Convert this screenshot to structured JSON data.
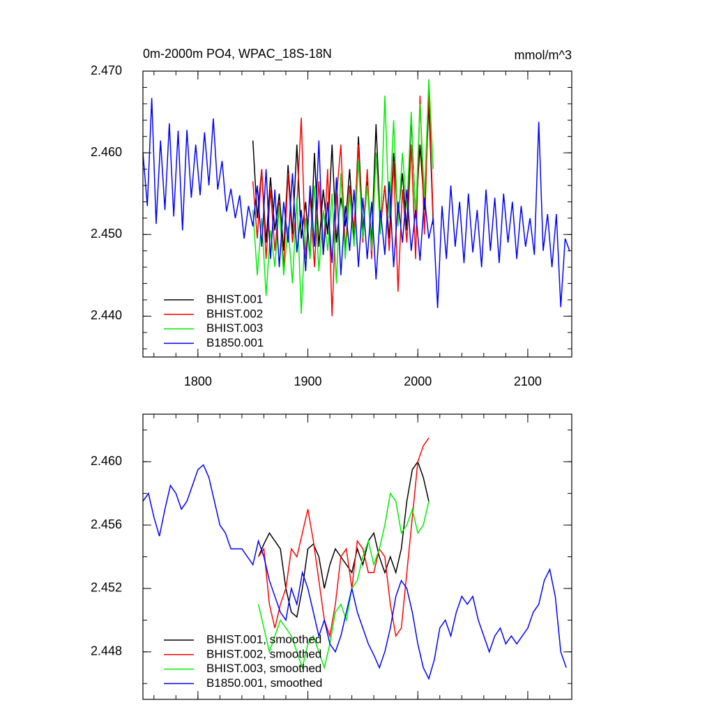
{
  "chart_data": [
    {
      "type": "line",
      "title": "0m-2000m PO4, WPAC_18S-18N",
      "subtitle": "mmol/m^3",
      "xlim": [
        1750,
        2140
      ],
      "ylim": [
        2.435,
        2.47
      ],
      "xticks": [
        1800,
        1900,
        2000,
        2100
      ],
      "yticks": [
        {
          "value": 2.44,
          "label": "2.440"
        },
        {
          "value": 2.45,
          "label": "2.450"
        },
        {
          "value": 2.46,
          "label": "2.460"
        },
        {
          "value": 2.47,
          "label": "2.470"
        }
      ],
      "legend": "lower left",
      "series": [
        {
          "name": "BHIST.001",
          "color": "#000000",
          "x": [
            1850,
            1854,
            1858,
            1862,
            1866,
            1870,
            1874,
            1878,
            1882,
            1886,
            1890,
            1894,
            1898,
            1902,
            1906,
            1910,
            1914,
            1918,
            1922,
            1926,
            1930,
            1934,
            1938,
            1942,
            1946,
            1950,
            1954,
            1958,
            1962,
            1966,
            1970,
            1974,
            1978,
            1982,
            1986,
            1990,
            1994,
            1998,
            2002,
            2006,
            2010,
            2014
          ],
          "values": [
            2.4615,
            2.452,
            2.458,
            2.449,
            2.457,
            2.4505,
            2.455,
            2.448,
            2.4585,
            2.45,
            2.461,
            2.4495,
            2.454,
            2.447,
            2.46,
            2.4485,
            2.4555,
            2.45,
            2.461,
            2.449,
            2.4545,
            2.451,
            2.458,
            2.4495,
            2.462,
            2.4505,
            2.4565,
            2.449,
            2.4635,
            2.451,
            2.456,
            2.4495,
            2.46,
            2.452,
            2.4575,
            2.4505,
            2.4645,
            2.452,
            2.461,
            2.453,
            2.466,
            2.4512
          ]
        },
        {
          "name": "BHIST.002",
          "color": "#ff0000",
          "x": [
            1850,
            1854,
            1858,
            1862,
            1866,
            1870,
            1874,
            1878,
            1882,
            1886,
            1890,
            1894,
            1898,
            1902,
            1906,
            1910,
            1914,
            1918,
            1922,
            1926,
            1930,
            1934,
            1938,
            1942,
            1946,
            1950,
            1954,
            1958,
            1962,
            1966,
            1970,
            1974,
            1978,
            1982,
            1986,
            1990,
            1994,
            1998,
            2002,
            2006,
            2010,
            2014
          ],
          "values": [
            2.4565,
            2.4495,
            2.458,
            2.447,
            2.4555,
            2.448,
            2.454,
            2.446,
            2.4575,
            2.449,
            2.4535,
            2.4643,
            2.447,
            2.455,
            2.446,
            2.4565,
            2.4475,
            2.458,
            2.44,
            2.4545,
            2.461,
            2.448,
            2.456,
            2.4505,
            2.461,
            2.449,
            2.458,
            2.447,
            2.46,
            2.451,
            2.456,
            2.448,
            2.459,
            2.443,
            2.4555,
            2.449,
            2.461,
            2.447,
            2.467,
            2.45,
            2.468,
            2.452
          ]
        },
        {
          "name": "BHIST.003",
          "color": "#00ee00",
          "x": [
            1850,
            1854,
            1858,
            1862,
            1866,
            1870,
            1874,
            1878,
            1882,
            1886,
            1890,
            1894,
            1898,
            1902,
            1906,
            1910,
            1914,
            1918,
            1922,
            1926,
            1930,
            1934,
            1938,
            1942,
            1946,
            1950,
            1954,
            1958,
            1962,
            1966,
            1970,
            1974,
            1978,
            1982,
            1986,
            1990,
            1994,
            1998,
            2002,
            2006,
            2010,
            2014
          ],
          "values": [
            2.453,
            2.445,
            2.452,
            2.4425,
            2.4505,
            2.446,
            2.4535,
            2.445,
            2.451,
            2.444,
            2.4545,
            2.4403,
            2.452,
            2.447,
            2.456,
            2.4455,
            2.453,
            2.448,
            2.455,
            2.444,
            2.4575,
            2.447,
            2.455,
            2.4485,
            2.459,
            2.4495,
            2.456,
            2.448,
            2.46,
            2.45,
            2.467,
            2.452,
            2.464,
            2.451,
            2.46,
            2.453,
            2.465,
            2.452,
            2.466,
            2.4545,
            2.469,
            2.458
          ]
        },
        {
          "name": "B1850.001",
          "color": "#0000ff",
          "x": [
            1750,
            1754,
            1758,
            1762,
            1766,
            1770,
            1774,
            1778,
            1782,
            1786,
            1790,
            1794,
            1798,
            1802,
            1806,
            1810,
            1814,
            1818,
            1822,
            1826,
            1830,
            1834,
            1838,
            1842,
            1846,
            1850,
            1854,
            1858,
            1862,
            1866,
            1870,
            1874,
            1878,
            1882,
            1886,
            1890,
            1894,
            1898,
            1902,
            1906,
            1910,
            1914,
            1918,
            1922,
            1926,
            1930,
            1934,
            1938,
            1942,
            1946,
            1950,
            1954,
            1958,
            1962,
            1966,
            1970,
            1974,
            1978,
            1982,
            1986,
            1990,
            1994,
            1998,
            2002,
            2006,
            2010,
            2014,
            2018,
            2022,
            2026,
            2030,
            2034,
            2038,
            2042,
            2046,
            2050,
            2054,
            2058,
            2062,
            2066,
            2070,
            2074,
            2078,
            2082,
            2086,
            2090,
            2094,
            2098,
            2102,
            2106,
            2110,
            2114,
            2118,
            2122,
            2126,
            2130,
            2134,
            2138
          ],
          "values": [
            2.46,
            2.4535,
            2.4667,
            2.4513,
            2.4615,
            2.453,
            2.4636,
            2.4522,
            2.4627,
            2.4505,
            2.4628,
            2.4545,
            2.461,
            2.4548,
            2.4625,
            2.456,
            2.4642,
            2.4555,
            2.459,
            2.4528,
            2.4556,
            2.452,
            2.4548,
            2.4495,
            2.4535,
            2.451,
            2.456,
            2.4485,
            2.458,
            2.447,
            2.4555,
            2.446,
            2.454,
            2.449,
            2.4575,
            2.4478,
            2.453,
            2.4455,
            2.456,
            2.4485,
            2.4615,
            2.4475,
            2.454,
            2.4465,
            2.457,
            2.445,
            2.4535,
            2.448,
            2.4555,
            2.446,
            2.4545,
            2.447,
            2.454,
            2.4445,
            2.453,
            2.4475,
            2.4565,
            2.446,
            2.454,
            2.449,
            2.4555,
            2.448,
            2.453,
            2.4468,
            2.4545,
            2.4495,
            2.452,
            2.441,
            2.4535,
            2.447,
            2.456,
            2.4485,
            2.454,
            2.4465,
            2.455,
            2.4478,
            2.453,
            2.446,
            2.4555,
            2.448,
            2.4545,
            2.4465,
            2.455,
            2.449,
            2.454,
            2.447,
            2.4535,
            2.4485,
            2.452,
            2.4475,
            2.4638,
            2.448,
            2.4525,
            2.446,
            2.4525,
            2.4411,
            2.4495,
            2.448
          ]
        }
      ]
    },
    {
      "type": "line",
      "xlim": [
        1750,
        2140
      ],
      "ylim": [
        2.445,
        2.463
      ],
      "xticks": [
        1800,
        1900,
        2000,
        2100
      ],
      "xticklabels": false,
      "yticks": [
        {
          "value": 2.448,
          "label": "2.448"
        },
        {
          "value": 2.452,
          "label": "2.452"
        },
        {
          "value": 2.456,
          "label": "2.456"
        },
        {
          "value": 2.46,
          "label": "2.460"
        }
      ],
      "legend": "lower left",
      "series": [
        {
          "name": "BHIST.001, smoothed",
          "color": "#000000",
          "x": [
            1855,
            1860,
            1865,
            1870,
            1875,
            1880,
            1885,
            1890,
            1895,
            1900,
            1905,
            1910,
            1915,
            1920,
            1925,
            1930,
            1935,
            1940,
            1945,
            1950,
            1955,
            1960,
            1965,
            1970,
            1975,
            1980,
            1985,
            1990,
            1995,
            2000,
            2005,
            2010
          ],
          "values": [
            2.454,
            2.4548,
            2.4555,
            2.455,
            2.4545,
            2.452,
            2.4505,
            2.4502,
            2.452,
            2.4545,
            2.4548,
            2.454,
            2.452,
            2.4535,
            2.4545,
            2.454,
            2.4535,
            2.453,
            2.4545,
            2.4535,
            2.455,
            2.4555,
            2.454,
            2.453,
            2.454,
            2.453,
            2.4545,
            2.4575,
            2.4595,
            2.46,
            2.459,
            2.4575
          ]
        },
        {
          "name": "BHIST.002, smoothed",
          "color": "#ff0000",
          "x": [
            1855,
            1860,
            1865,
            1870,
            1875,
            1880,
            1885,
            1890,
            1895,
            1900,
            1905,
            1910,
            1915,
            1920,
            1925,
            1930,
            1935,
            1940,
            1945,
            1950,
            1955,
            1960,
            1965,
            1970,
            1975,
            1980,
            1985,
            1990,
            1995,
            2000,
            2005,
            2010
          ],
          "values": [
            2.454,
            2.4545,
            2.451,
            2.4495,
            2.451,
            2.452,
            2.4545,
            2.454,
            2.4555,
            2.457,
            2.455,
            2.4525,
            2.45,
            2.449,
            2.451,
            2.454,
            2.4545,
            2.452,
            2.455,
            2.4545,
            2.453,
            2.453,
            2.4545,
            2.454,
            2.451,
            2.449,
            2.4495,
            2.453,
            2.4565,
            2.46,
            2.461,
            2.4615
          ]
        },
        {
          "name": "BHIST.003, smoothed",
          "color": "#00ee00",
          "x": [
            1855,
            1860,
            1865,
            1870,
            1875,
            1880,
            1885,
            1890,
            1895,
            1900,
            1905,
            1910,
            1915,
            1920,
            1925,
            1930,
            1935,
            1940,
            1945,
            1950,
            1955,
            1960,
            1965,
            1970,
            1975,
            1980,
            1985,
            1990,
            1995,
            2000,
            2005,
            2010
          ],
          "values": [
            2.451,
            2.4495,
            2.448,
            2.449,
            2.45,
            2.4495,
            2.449,
            2.448,
            2.447,
            2.4485,
            2.449,
            2.448,
            2.447,
            2.4485,
            2.4505,
            2.451,
            2.45,
            2.452,
            2.4525,
            2.454,
            2.455,
            2.4535,
            2.4545,
            2.456,
            2.458,
            2.4575,
            2.4555,
            2.456,
            2.457,
            2.4555,
            2.456,
            2.4575
          ]
        },
        {
          "name": "B1850.001, smoothed",
          "color": "#0000ff",
          "x": [
            1750,
            1755,
            1760,
            1765,
            1770,
            1775,
            1780,
            1785,
            1790,
            1795,
            1800,
            1805,
            1810,
            1815,
            1820,
            1825,
            1830,
            1835,
            1840,
            1845,
            1850,
            1855,
            1860,
            1865,
            1870,
            1875,
            1880,
            1885,
            1890,
            1895,
            1900,
            1905,
            1910,
            1915,
            1920,
            1925,
            1930,
            1935,
            1940,
            1945,
            1950,
            1955,
            1960,
            1965,
            1970,
            1975,
            1980,
            1985,
            1990,
            1995,
            2000,
            2005,
            2010,
            2015,
            2020,
            2025,
            2030,
            2035,
            2040,
            2045,
            2050,
            2055,
            2060,
            2065,
            2070,
            2075,
            2080,
            2085,
            2090,
            2095,
            2100,
            2105,
            2110,
            2115,
            2120,
            2125,
            2130,
            2135
          ],
          "values": [
            2.4575,
            2.458,
            2.4565,
            2.4553,
            2.457,
            2.4585,
            2.458,
            2.457,
            2.4575,
            2.4585,
            2.4595,
            2.4598,
            2.459,
            2.4575,
            2.456,
            2.4555,
            2.4545,
            2.4545,
            2.4545,
            2.454,
            2.4535,
            2.455,
            2.454,
            2.4525,
            2.4515,
            2.4505,
            2.45,
            2.452,
            2.451,
            2.453,
            2.452,
            2.4505,
            2.449,
            2.45,
            2.4485,
            2.448,
            2.449,
            2.4505,
            2.452,
            2.4505,
            2.4495,
            2.4485,
            2.4478,
            2.447,
            2.448,
            2.4495,
            2.4515,
            2.4525,
            2.452,
            2.4505,
            2.4485,
            2.447,
            2.4463,
            2.4475,
            2.4495,
            2.45,
            2.449,
            2.4505,
            2.4515,
            2.451,
            2.4515,
            2.45,
            2.449,
            2.448,
            2.449,
            2.4495,
            2.4485,
            2.449,
            2.4485,
            2.449,
            2.4495,
            2.4505,
            2.451,
            2.4525,
            2.4532,
            2.4515,
            2.448,
            2.447
          ]
        }
      ]
    }
  ]
}
